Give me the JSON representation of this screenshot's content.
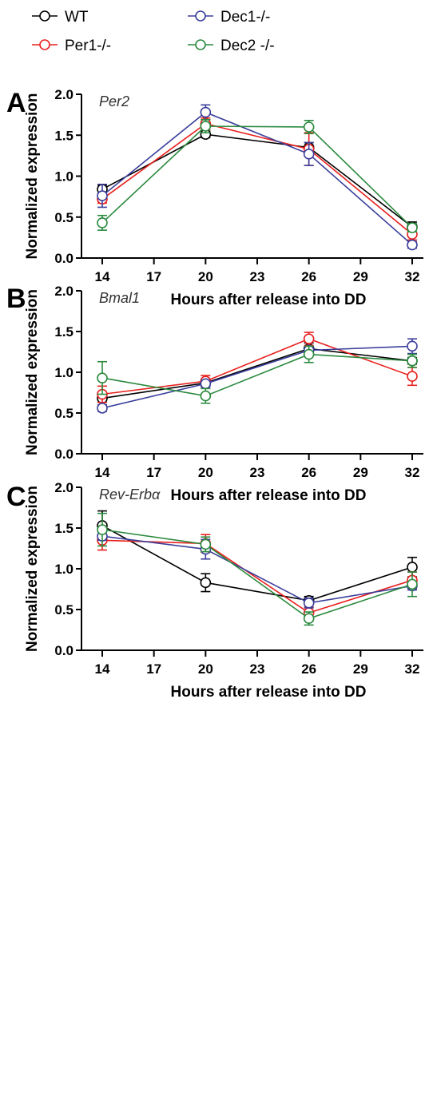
{
  "legend": [
    {
      "name": "WT",
      "color": "#000000"
    },
    {
      "name": "Per1-/-",
      "color": "#e8201e"
    },
    {
      "name": "Dec1-/-",
      "color": "#3b3f9b"
    },
    {
      "name": "Dec2 -/-",
      "color": "#2b8a3e"
    }
  ],
  "chart_data": [
    {
      "type": "line",
      "panel": "A",
      "title": "Per2",
      "xlabel": "Hours after release into DD",
      "ylabel": "Normalized expression",
      "xlim": [
        12,
        32
      ],
      "ylim": [
        0,
        2.0
      ],
      "x_ticks": [
        14,
        17,
        20,
        23,
        26,
        29,
        32
      ],
      "y_ticks": [
        "0.0",
        "0.5",
        "1.0",
        "1.5",
        "2.0"
      ],
      "x": [
        14,
        20,
        26,
        32
      ],
      "series": [
        {
          "name": "WT",
          "color": "#000000",
          "values": [
            0.84,
            1.51,
            1.35,
            0.38
          ],
          "errors": [
            0.05,
            0.04,
            0.06,
            0.06
          ]
        },
        {
          "name": "Per1-/-",
          "color": "#e8201e",
          "values": [
            0.72,
            1.64,
            1.33,
            0.29
          ],
          "errors": [
            0.05,
            0.07,
            0.2,
            0.07
          ]
        },
        {
          "name": "Dec1-/-",
          "color": "#3b3f9b",
          "values": [
            0.76,
            1.78,
            1.27,
            0.16
          ],
          "errors": [
            0.14,
            0.09,
            0.14,
            0.04
          ]
        },
        {
          "name": "Dec2 -/-",
          "color": "#2b8a3e",
          "values": [
            0.43,
            1.61,
            1.6,
            0.37
          ],
          "errors": [
            0.09,
            0.08,
            0.08,
            0.05
          ]
        }
      ]
    },
    {
      "type": "line",
      "panel": "B",
      "title": "Bmal1",
      "xlabel": "Hours after release into DD",
      "ylabel": "Normalized expression",
      "xlim": [
        12,
        32
      ],
      "ylim": [
        0,
        2.0
      ],
      "x_ticks": [
        14,
        17,
        20,
        23,
        26,
        29,
        32
      ],
      "y_ticks": [
        "0.0",
        "0.5",
        "1.0",
        "1.5",
        "2.0"
      ],
      "x": [
        14,
        20,
        26,
        32
      ],
      "series": [
        {
          "name": "WT",
          "color": "#000000",
          "values": [
            0.68,
            0.87,
            1.29,
            1.14
          ],
          "errors": [
            0.05,
            0.05,
            0.07,
            0.04
          ]
        },
        {
          "name": "Per1-/-",
          "color": "#e8201e",
          "values": [
            0.73,
            0.89,
            1.41,
            0.95
          ],
          "errors": [
            0.1,
            0.07,
            0.08,
            0.11
          ]
        },
        {
          "name": "Dec1-/-",
          "color": "#3b3f9b",
          "values": [
            0.56,
            0.86,
            1.27,
            1.32
          ],
          "errors": [
            0.04,
            0.04,
            0.03,
            0.09
          ]
        },
        {
          "name": "Dec2 -/-",
          "color": "#2b8a3e",
          "values": [
            0.93,
            0.71,
            1.22,
            1.14
          ],
          "errors": [
            0.2,
            0.09,
            0.1,
            0.08
          ]
        }
      ]
    },
    {
      "type": "line",
      "panel": "C",
      "title": "Rev-Erbα",
      "xlabel": "Hours after release into DD",
      "ylabel": "Normalized expression",
      "xlim": [
        12,
        32
      ],
      "ylim": [
        0,
        2.0
      ],
      "x_ticks": [
        14,
        17,
        20,
        23,
        26,
        29,
        32
      ],
      "y_ticks": [
        "0.0",
        "0.5",
        "1.0",
        "1.5",
        "2.0"
      ],
      "x": [
        14,
        20,
        26,
        32
      ],
      "series": [
        {
          "name": "WT",
          "color": "#000000",
          "values": [
            1.53,
            0.83,
            0.61,
            1.02
          ],
          "errors": [
            0.18,
            0.11,
            0.05,
            0.12
          ]
        },
        {
          "name": "Per1-/-",
          "color": "#e8201e",
          "values": [
            1.35,
            1.31,
            0.46,
            0.86
          ],
          "errors": [
            0.12,
            0.11,
            0.07,
            0.1
          ]
        },
        {
          "name": "Dec1-/-",
          "color": "#3b3f9b",
          "values": [
            1.4,
            1.24,
            0.58,
            0.79
          ],
          "errors": [
            0.05,
            0.12,
            0.06,
            0.05
          ]
        },
        {
          "name": "Dec2 -/-",
          "color": "#2b8a3e",
          "values": [
            1.48,
            1.3,
            0.39,
            0.81
          ],
          "errors": [
            0.2,
            0.09,
            0.08,
            0.15
          ]
        }
      ]
    }
  ]
}
